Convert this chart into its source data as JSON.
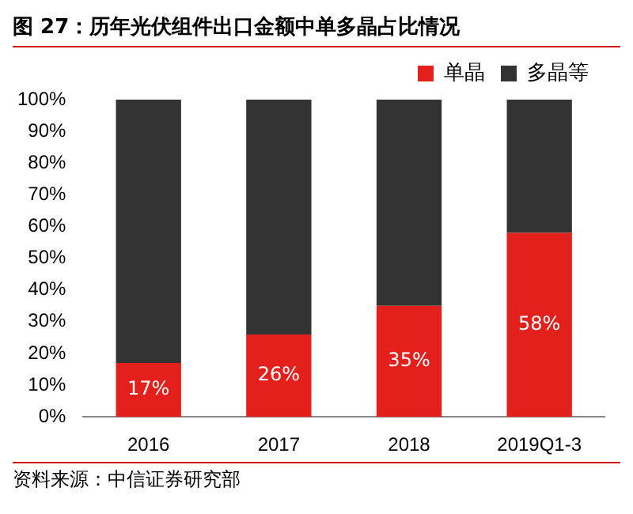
{
  "chart_data": {
    "type": "bar",
    "title": "图 27：历年光伏组件出口金额中单多晶占比情况",
    "categories": [
      "2016",
      "2017",
      "2018",
      "2019Q1-3"
    ],
    "stacked": true,
    "legend": "top right",
    "grid": false,
    "series": [
      {
        "name": "单晶",
        "color": "#e3201b",
        "values": [
          17,
          26,
          35,
          58
        ],
        "value_labels": [
          "17%",
          "26%",
          "35%",
          "58%"
        ]
      },
      {
        "name": "多晶等",
        "color": "#333333",
        "values": [
          83,
          74,
          65,
          42
        ]
      }
    ],
    "ylim": [
      0,
      100
    ],
    "yticks": [
      {
        "value": 0,
        "label": "0%"
      },
      {
        "value": 10,
        "label": "10%"
      },
      {
        "value": 20,
        "label": "20%"
      },
      {
        "value": 30,
        "label": "30%"
      },
      {
        "value": 40,
        "label": "40%"
      },
      {
        "value": 50,
        "label": "50%"
      },
      {
        "value": 60,
        "label": "60%"
      },
      {
        "value": 70,
        "label": "70%"
      },
      {
        "value": 80,
        "label": "80%"
      },
      {
        "value": 90,
        "label": "90%"
      },
      {
        "value": 100,
        "label": "100%"
      }
    ],
    "annotations": [
      "资料来源：中信证券研究部"
    ]
  }
}
